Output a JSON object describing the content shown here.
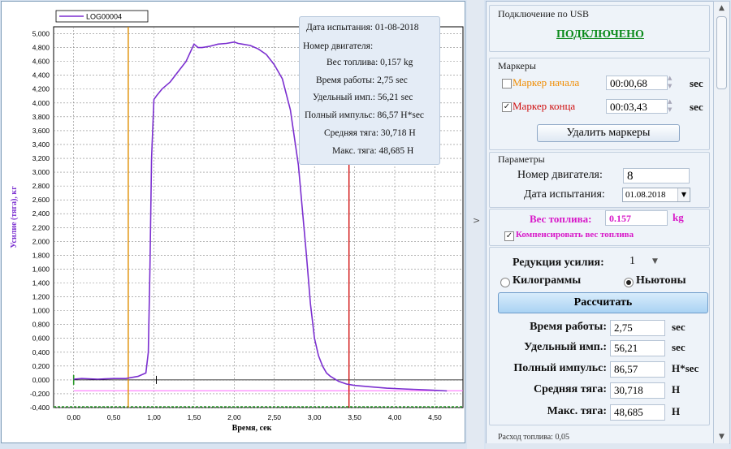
{
  "info_box": {
    "date_line": "Дата испытания: 01-08-2018",
    "engine_line": "Номер двигателя:",
    "fuel_line": "Вес топлива: 0,157 kg",
    "worktime_line": "Время работы: 2,75 sec",
    "specimp_line": "Удельный имп.: 56,21 sec",
    "totalimp_line": "Полный импульс: 86,57 H*sec",
    "avgthrust_line": "Средняя тяга: 30,718 Н",
    "maxthrust_line": "Макс. тяга: 48,685 Н"
  },
  "chart_data": {
    "type": "line",
    "title": "",
    "xlabel": "Время, сек",
    "ylabel": "Усилие (тяга), кг",
    "xlim": [
      -0.25,
      4.85
    ],
    "ylim": [
      -0.4,
      5.1
    ],
    "x_ticks": [
      "0,00",
      "0,50",
      "1,00",
      "1,50",
      "2,00",
      "2,50",
      "3,00",
      "3,50",
      "4,00",
      "4,50"
    ],
    "x_tick_values": [
      0,
      0.5,
      1,
      1.5,
      2,
      2.5,
      3,
      3.5,
      4,
      4.5
    ],
    "y_ticks": [
      "5,000",
      "4,800",
      "4,600",
      "4,400",
      "4,200",
      "4,000",
      "3,800",
      "3,600",
      "3,400",
      "3,200",
      "3,000",
      "2,800",
      "2,600",
      "2,400",
      "2,200",
      "2,000",
      "1,800",
      "1,600",
      "1,400",
      "1,200",
      "1,000",
      "0,800",
      "0,600",
      "0,400",
      "0,200",
      "0,000",
      "-0,200",
      "-0,400"
    ],
    "y_tick_values": [
      5,
      4.8,
      4.6,
      4.4,
      4.2,
      4,
      3.8,
      3.6,
      3.4,
      3.2,
      3,
      2.8,
      2.6,
      2.4,
      2.2,
      2,
      1.8,
      1.6,
      1.4,
      1.2,
      1,
      0.8,
      0.6,
      0.4,
      0.2,
      0,
      -0.2,
      -0.4
    ],
    "grid": true,
    "legend_position": "top-left",
    "series": [
      {
        "name": "LOG00004",
        "color": "#7b2fd0",
        "x": [
          0,
          0.1,
          0.3,
          0.5,
          0.65,
          0.8,
          0.9,
          0.93,
          0.95,
          0.97,
          1.0,
          1.03,
          1.1,
          1.2,
          1.3,
          1.4,
          1.5,
          1.55,
          1.6,
          1.7,
          1.8,
          1.9,
          2.0,
          2.05,
          2.1,
          2.2,
          2.3,
          2.4,
          2.5,
          2.6,
          2.7,
          2.8,
          2.9,
          2.95,
          3.0,
          3.05,
          3.1,
          3.15,
          3.2,
          3.3,
          3.4,
          3.5,
          3.7,
          3.9,
          4.1,
          4.3,
          4.5,
          4.65
        ],
        "y": [
          0.01,
          0.02,
          0.01,
          0.02,
          0.02,
          0.05,
          0.1,
          0.4,
          1.6,
          3.2,
          4.05,
          4.1,
          4.2,
          4.3,
          4.45,
          4.6,
          4.85,
          4.8,
          4.8,
          4.82,
          4.85,
          4.86,
          4.88,
          4.86,
          4.85,
          4.83,
          4.78,
          4.7,
          4.55,
          4.35,
          3.9,
          3.1,
          1.8,
          1.1,
          0.6,
          0.35,
          0.2,
          0.1,
          0.05,
          -0.02,
          -0.06,
          -0.08,
          -0.1,
          -0.12,
          -0.13,
          -0.14,
          -0.15,
          -0.16
        ]
      }
    ],
    "markers": [
      {
        "name": "start",
        "x": 0.68,
        "color": "#e08c00"
      },
      {
        "name": "end",
        "x": 3.43,
        "color": "#d01010"
      }
    ],
    "baseline_y": -0.157,
    "baseline_color": "#ff66ff"
  },
  "splitter": {
    "arrow": ">"
  },
  "usb": {
    "title": "Подключение по USB",
    "status": "ПОДКЛЮЧЕНО"
  },
  "markers": {
    "title": "Маркеры",
    "start_label": "Маркер начала",
    "start_checked": "",
    "start_value": "00:00,68",
    "end_label": "Маркер конца",
    "end_checked": "✓",
    "end_value": "00:03,43",
    "unit": "sec",
    "delete_button": "Удалить маркеры"
  },
  "params": {
    "title": "Параметры",
    "engine_label": "Номер двигателя:",
    "engine_value": "8",
    "date_label": "Дата испытания:",
    "date_value": "01.08.2018"
  },
  "fuel": {
    "label": "Вес топлива:",
    "value": "0.157",
    "unit": "kg",
    "compensate_label": "Компенсировать вес топлива",
    "compensate_checked": "✓"
  },
  "calc": {
    "reduction_label": "Редукция усилия:",
    "reduction_value": "1",
    "unit_kg_label": "Килограммы",
    "unit_n_label": "Ньютоны",
    "calc_button": "Рассчитать",
    "rows": [
      {
        "label": "Время работы:",
        "value": "2,75",
        "unit": "sec"
      },
      {
        "label": "Удельный имп.:",
        "value": "56,21",
        "unit": "sec"
      },
      {
        "label": "Полный импульс:",
        "value": "86,57",
        "unit": "H*sec"
      },
      {
        "label": "Средняя тяга:",
        "value": "30,718",
        "unit": "H"
      },
      {
        "label": "Макс. тяга:",
        "value": "48,685",
        "unit": "H"
      }
    ]
  },
  "partial_row": "Расход топлива: 0,05",
  "scrollbar": {
    "up": "▲",
    "down": "▼"
  }
}
